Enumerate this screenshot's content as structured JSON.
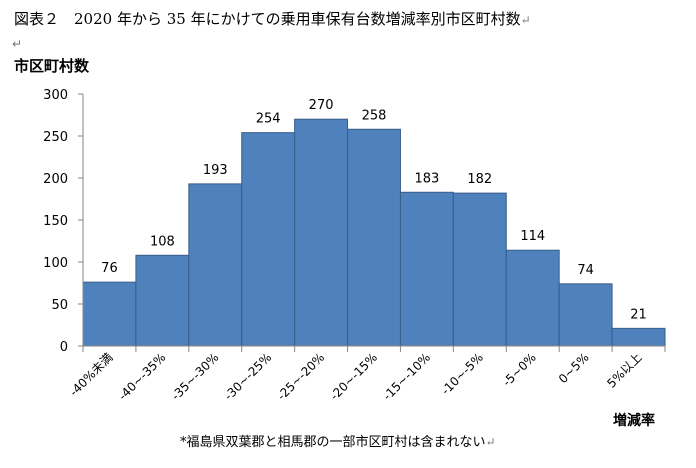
{
  "figure": {
    "title": "図表２　2020 年から 35 年にかけての乗用車保有台数増減率別市区町村数",
    "footnote": "*福島県双葉郡と相馬郡の一部市区町村は含まれない",
    "return_mark": "↵"
  },
  "chart_data": {
    "type": "bar",
    "categories": [
      "-40%未満",
      "-40~-35%",
      "-35~-30%",
      "-30~-25%",
      "-25~-20%",
      "-20~-15%",
      "-15~-10%",
      "-10~-5%",
      "-5~0%",
      "0~5%",
      "5%以上"
    ],
    "values": [
      76,
      108,
      193,
      254,
      270,
      258,
      183,
      182,
      114,
      74,
      21
    ],
    "ylabel": "市区町村数",
    "xlabel": "増減率",
    "ylim": [
      0,
      300
    ],
    "yticks": [
      0,
      50,
      100,
      150,
      200,
      250,
      300
    ],
    "grid": false,
    "legend": "none",
    "bar_color": "#4f81bd"
  }
}
